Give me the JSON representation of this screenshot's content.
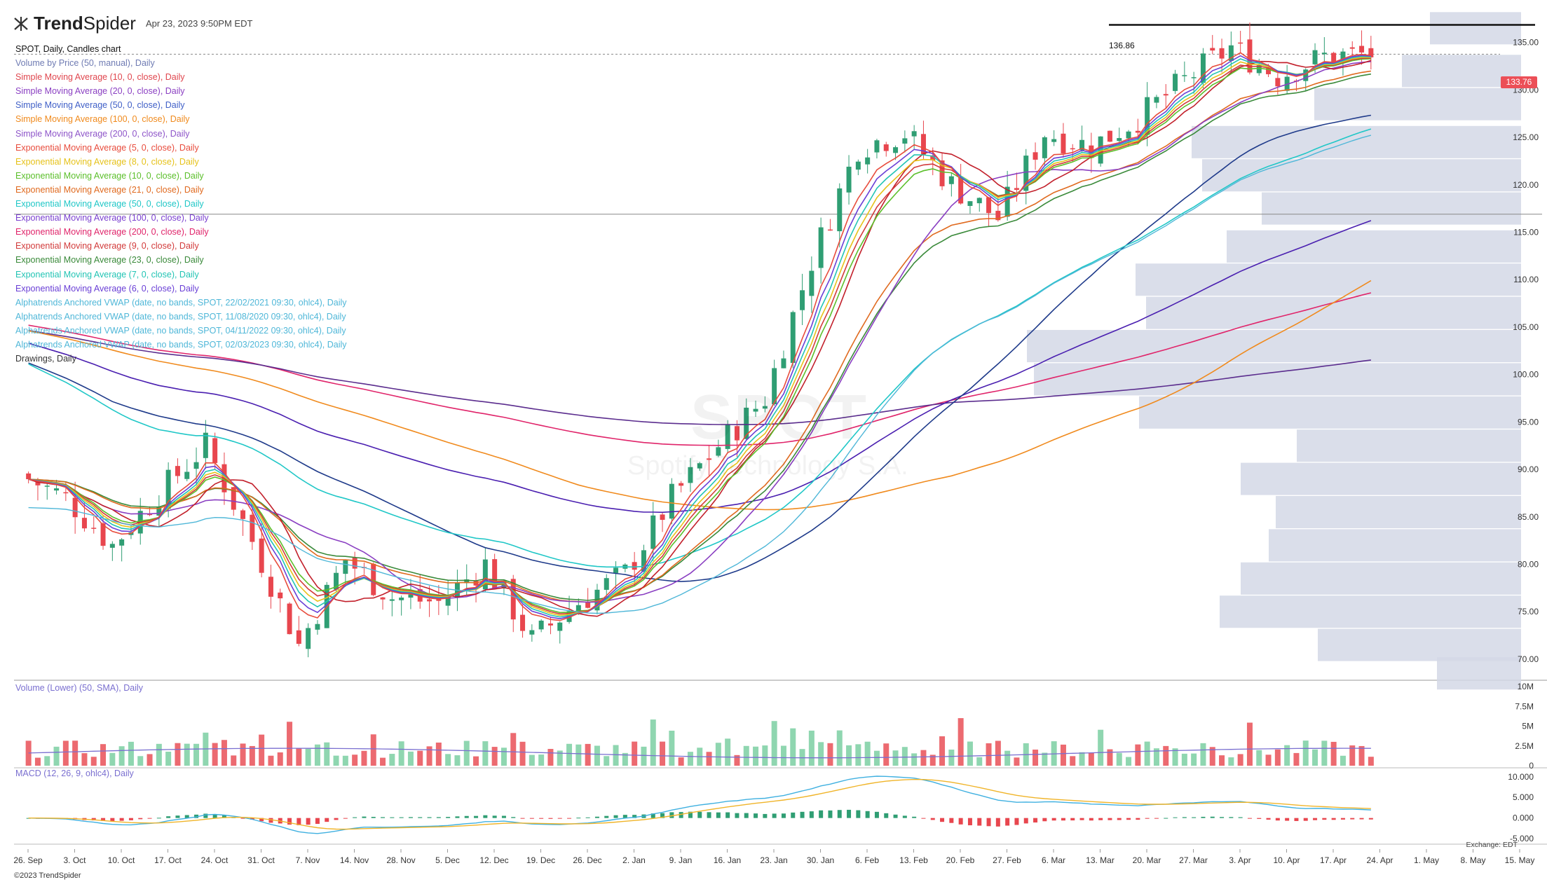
{
  "app": {
    "brand_bold": "Trend",
    "brand_light": "Spider",
    "timestamp": "Apr 23, 2023 9:50PM EDT",
    "copyright": "©2023 TrendSpider",
    "exchange": "Exchange: EDT"
  },
  "chart": {
    "title": "SPOT, Daily, Candles chart",
    "watermark_symbol": "SPOT",
    "watermark_name": "Spotify Technology S.A.",
    "last_price": "133.76",
    "resistance_label": "136.86",
    "indicators": [
      {
        "label": "Volume by Price (50, manual), Daily",
        "color": "#6f7bb3"
      },
      {
        "label": "Simple Moving Average (10, 0, close), Daily",
        "color": "#e0464e"
      },
      {
        "label": "Simple Moving Average (20, 0, close), Daily",
        "color": "#8a3fc2"
      },
      {
        "label": "Simple Moving Average (50, 0, close), Daily",
        "color": "#3f5fc7"
      },
      {
        "label": "Simple Moving Average (100, 0, close), Daily",
        "color": "#f08a1d"
      },
      {
        "label": "Simple Moving Average (200, 0, close), Daily",
        "color": "#8e55c9"
      },
      {
        "label": "Exponential Moving Average (5, 0, close), Daily",
        "color": "#e84c3d"
      },
      {
        "label": "Exponential Moving Average (8, 0, close), Daily",
        "color": "#e6c21a"
      },
      {
        "label": "Exponential Moving Average (10, 0, close), Daily",
        "color": "#5bbf2a"
      },
      {
        "label": "Exponential Moving Average (21, 0, close), Daily",
        "color": "#e06a1f"
      },
      {
        "label": "Exponential Moving Average (50, 0, close), Daily",
        "color": "#20c7c7"
      },
      {
        "label": "Exponential Moving Average (100, 0, close), Daily",
        "color": "#7a3fd0"
      },
      {
        "label": "Exponential Moving Average (200, 0, close), Daily",
        "color": "#e0246a"
      },
      {
        "label": "Exponential Moving Average (9, 0, close), Daily",
        "color": "#d23b3b"
      },
      {
        "label": "Exponential Moving Average (23, 0, close), Daily",
        "color": "#3a8a3a"
      },
      {
        "label": "Exponential Moving Average (7, 0, close), Daily",
        "color": "#22c4b4"
      },
      {
        "label": "Exponential Moving Average (6, 0, close), Daily",
        "color": "#6a3fd6"
      },
      {
        "label": "Alphatrends Anchored VWAP (date, no bands, SPOT, 22/02/2021 09:30, ohlc4), Daily",
        "color": "#4fb7d8"
      },
      {
        "label": "Alphatrends Anchored VWAP (date, no bands, SPOT, 11/08/2020 09:30, ohlc4), Daily",
        "color": "#4fb7d8"
      },
      {
        "label": "Alphatrends Anchored VWAP (date, no bands, SPOT, 04/11/2022 09:30, ohlc4), Daily",
        "color": "#4fb7d8"
      },
      {
        "label": "Alphatrends Anchored VWAP (date, no bands, SPOT, 02/03/2023 09:30, ohlc4), Daily",
        "color": "#4fb7d8"
      },
      {
        "label": "Drawings, Daily",
        "color": "#333333"
      }
    ],
    "volume_label": "Volume (Lower) (50, SMA), Daily",
    "macd_label": "MACD (12, 26, 9, ohlc4), Daily",
    "price_axis": [
      "135.00",
      "130.00",
      "125.00",
      "120.00",
      "115.00",
      "110.00",
      "105.00",
      "100.00",
      "95.00",
      "90.00",
      "85.00",
      "80.00",
      "75.00",
      "70.00"
    ],
    "volume_axis": [
      "10M",
      "7.5M",
      "5M",
      "2.5M",
      "0"
    ],
    "macd_axis": [
      "10.000",
      "5.000",
      "0.000",
      "-5.000"
    ],
    "date_axis": [
      "26. Sep",
      "3. Oct",
      "10. Oct",
      "17. Oct",
      "24. Oct",
      "31. Oct",
      "7. Nov",
      "14. Nov",
      "28. Nov",
      "5. Dec",
      "12. Dec",
      "19. Dec",
      "26. Dec",
      "2. Jan",
      "9. Jan",
      "16. Jan",
      "23. Jan",
      "30. Jan",
      "6. Feb",
      "13. Feb",
      "20. Feb",
      "27. Feb",
      "6. Mar",
      "13. Mar",
      "20. Mar",
      "27. Mar",
      "3. Apr",
      "10. Apr",
      "17. Apr",
      "24. Apr",
      "1. May",
      "8. May",
      "15. May"
    ]
  },
  "chart_data": {
    "type": "candlestick",
    "symbol": "SPOT",
    "timeframe": "Daily",
    "ylim": [
      68,
      138
    ],
    "horizontal_levels": [
      136.86,
      116.9
    ],
    "last_price": 133.76,
    "close_path": [
      {
        "date": "26. Sep",
        "close": 89.5
      },
      {
        "date": "3. Oct",
        "close": 87.0
      },
      {
        "date": "10. Oct",
        "close": 82.0
      },
      {
        "date": "17. Oct",
        "close": 87.5
      },
      {
        "date": "24. Oct",
        "close": 92.5
      },
      {
        "date": "31. Oct",
        "close": 82.5
      },
      {
        "date": "7. Nov",
        "close": 71.5
      },
      {
        "date": "14. Nov",
        "close": 80.5
      },
      {
        "date": "28. Nov",
        "close": 76.5
      },
      {
        "date": "5. Dec",
        "close": 76.0
      },
      {
        "date": "12. Dec",
        "close": 80.0
      },
      {
        "date": "19. Dec",
        "close": 72.0
      },
      {
        "date": "26. Dec",
        "close": 76.0
      },
      {
        "date": "2. Jan",
        "close": 79.0
      },
      {
        "date": "9. Jan",
        "close": 87.0
      },
      {
        "date": "16. Jan",
        "close": 92.5
      },
      {
        "date": "23. Jan",
        "close": 97.5
      },
      {
        "date": "30. Jan",
        "close": 112.0
      },
      {
        "date": "6. Feb",
        "close": 124.0
      },
      {
        "date": "13. Feb",
        "close": 125.5
      },
      {
        "date": "20. Feb",
        "close": 120.0
      },
      {
        "date": "27. Feb",
        "close": 116.5
      },
      {
        "date": "6. Mar",
        "close": 125.5
      },
      {
        "date": "13. Mar",
        "close": 124.0
      },
      {
        "date": "20. Mar",
        "close": 127.0
      },
      {
        "date": "27. Mar",
        "close": 131.0
      },
      {
        "date": "3. Apr",
        "close": 134.5
      },
      {
        "date": "10. Apr",
        "close": 131.5
      },
      {
        "date": "17. Apr",
        "close": 133.5
      },
      {
        "date": "24. Apr",
        "close": 133.76
      }
    ],
    "volume_ylim": [
      0,
      10
    ],
    "macd_ylim": [
      -6,
      12
    ]
  }
}
